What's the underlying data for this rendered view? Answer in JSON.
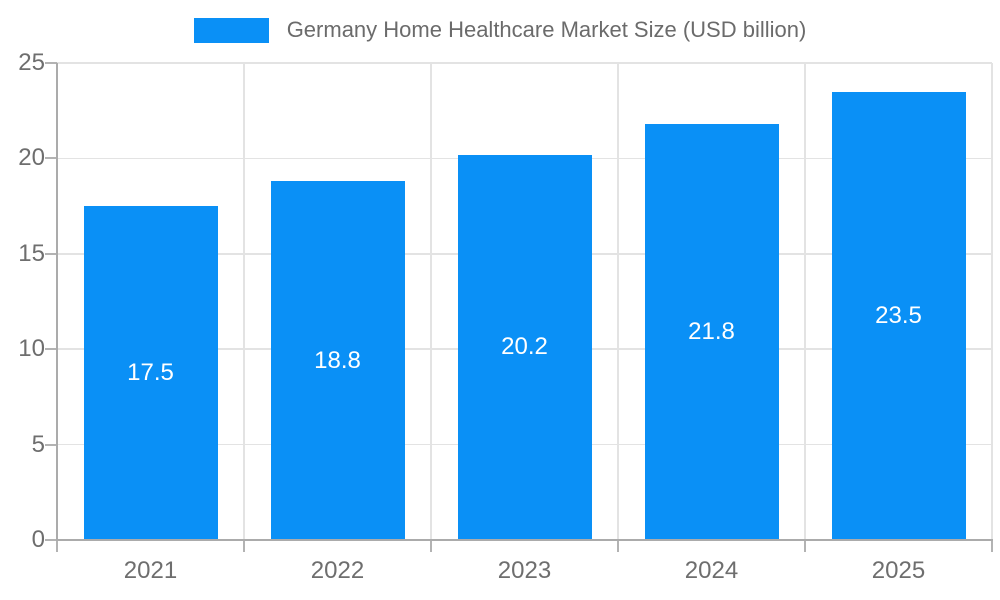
{
  "chart_data": {
    "type": "bar",
    "title": "Germany Home Healthcare Market Size (USD billion)",
    "categories": [
      "2021",
      "2022",
      "2023",
      "2024",
      "2025"
    ],
    "values": [
      17.5,
      18.8,
      20.2,
      21.8,
      23.5
    ],
    "value_labels": [
      "17.5",
      "18.8",
      "20.2",
      "21.8",
      "23.5"
    ],
    "xlabel": "",
    "ylabel": "",
    "ylim": [
      0,
      25
    ],
    "yticks": [
      0,
      5,
      10,
      15,
      20,
      25
    ],
    "grid": true,
    "legend_position": "top-center",
    "colors": {
      "bar": "#0a90f6",
      "value_label": "#ffffff",
      "tick_label": "#6e6e6e",
      "legend_label": "#6b6b6b",
      "gridline": "#e3e3e3",
      "axis_line": "#ababab",
      "background": "#ffffff"
    }
  },
  "legend": {
    "label": "Germany Home Healthcare Market Size (USD billion)"
  }
}
